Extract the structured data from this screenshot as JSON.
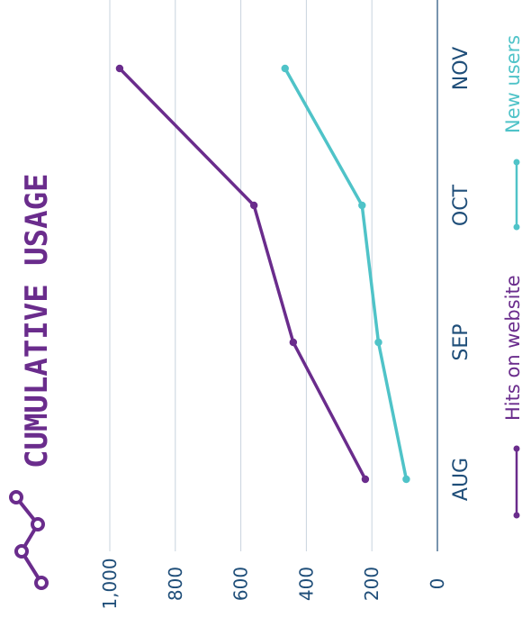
{
  "chart_data": {
    "type": "line",
    "title": "CUMULATIVE USAGE",
    "categories": [
      "AUG",
      "SEP",
      "OCT",
      "NOV"
    ],
    "series": [
      {
        "name": "Hits on website",
        "values": [
          220,
          440,
          560,
          970
        ],
        "color": "#6a2c8c"
      },
      {
        "name": "New users",
        "values": [
          95,
          180,
          230,
          465
        ],
        "color": "#4fc3c8"
      }
    ],
    "ylim": [
      0,
      1000
    ],
    "y_ticks": [
      "0",
      "200",
      "400",
      "600",
      "800",
      "1,000"
    ],
    "xlabel": "",
    "ylabel": "",
    "grid": true,
    "legend_position": "right",
    "orientation": "rotated-90"
  },
  "colors": {
    "title": "#6a2c8c",
    "axis_text": "#1f4e79",
    "grid": "#c8d3de",
    "axis_line": "#1f4e79"
  },
  "icons": {
    "title_icon": "line-chart-icon"
  }
}
